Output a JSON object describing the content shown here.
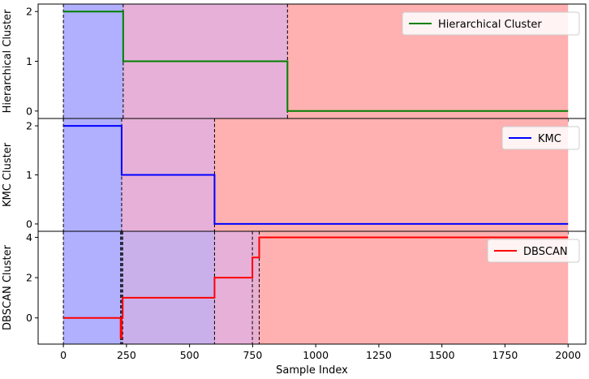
{
  "chart_data": [
    {
      "type": "line",
      "step": true,
      "ylabel": "Hierarchical Cluster",
      "xlabel": "",
      "xlim": [
        -100,
        2070
      ],
      "ylim": [
        -0.15,
        2.15
      ],
      "yticks": [
        0,
        1,
        2
      ],
      "grid": false,
      "legend_position": "top-right",
      "series": [
        {
          "name": "Hierarchical Cluster",
          "color": "#008000",
          "x": [
            0,
            237,
            237,
            888,
            888,
            2000
          ],
          "values": [
            2,
            2,
            1,
            1,
            0,
            0
          ]
        }
      ],
      "shaded_regions": [
        {
          "x0": 0,
          "x1": 237,
          "color": "#b0b0ff"
        },
        {
          "x0": 237,
          "x1": 888,
          "color": "#e6b0d8"
        },
        {
          "x0": 888,
          "x1": 2000,
          "color": "#ffb0b0"
        }
      ],
      "boundaries": [
        0,
        237,
        888
      ]
    },
    {
      "type": "line",
      "step": true,
      "ylabel": "KMC Cluster",
      "xlabel": "",
      "xlim": [
        -100,
        2070
      ],
      "ylim": [
        -0.15,
        2.15
      ],
      "yticks": [
        0,
        1,
        2
      ],
      "grid": false,
      "legend_position": "top-right",
      "series": [
        {
          "name": "KMC",
          "color": "#0000ff",
          "x": [
            0,
            231,
            231,
            599,
            599,
            2000
          ],
          "values": [
            2,
            2,
            1,
            1,
            0,
            0
          ]
        }
      ],
      "shaded_regions": [
        {
          "x0": 0,
          "x1": 231,
          "color": "#b0b0ff"
        },
        {
          "x0": 231,
          "x1": 599,
          "color": "#e6b0d8"
        },
        {
          "x0": 599,
          "x1": 2000,
          "color": "#ffb0b0"
        }
      ],
      "boundaries": [
        0,
        231,
        599
      ]
    },
    {
      "type": "line",
      "step": true,
      "ylabel": "DBSCAN Cluster",
      "xlabel": "Sample Index",
      "xlim": [
        -100,
        2070
      ],
      "xticks": [
        0,
        250,
        500,
        750,
        1000,
        1250,
        1500,
        1750,
        2000
      ],
      "ylim": [
        -1.3,
        4.3
      ],
      "yticks": [
        0,
        2,
        4
      ],
      "grid": false,
      "legend_position": "top-right",
      "series": [
        {
          "name": "DBSCAN",
          "color": "#ff0000",
          "x": [
            0,
            227,
            227,
            231,
            231,
            235,
            235,
            599,
            599,
            749,
            749,
            776,
            776,
            2000
          ],
          "values": [
            0,
            0,
            -1,
            -1,
            0,
            0,
            1,
            1,
            2,
            2,
            3,
            3,
            4,
            4
          ]
        }
      ],
      "shaded_regions": [
        {
          "x0": 0,
          "x1": 235,
          "color": "#b0b0ff"
        },
        {
          "x0": 235,
          "x1": 599,
          "color": "#cab0ea"
        },
        {
          "x0": 599,
          "x1": 749,
          "color": "#e6b0d8"
        },
        {
          "x0": 749,
          "x1": 776,
          "color": "#eab0d4"
        },
        {
          "x0": 776,
          "x1": 2000,
          "color": "#ffb0b0"
        }
      ],
      "boundaries": [
        0,
        227,
        231,
        235,
        599,
        749,
        776
      ]
    }
  ]
}
